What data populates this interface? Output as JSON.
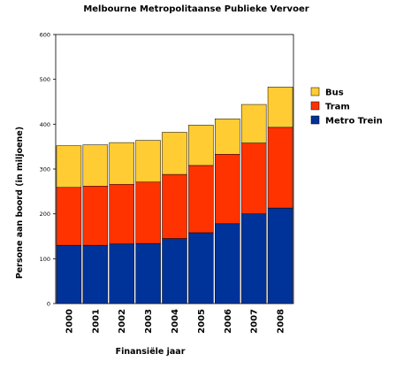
{
  "chart_data": {
    "type": "bar",
    "stacked": true,
    "title": "Melbourne Metropolitaanse Publieke Vervoer",
    "xlabel": "Finansiële jaar",
    "ylabel": "Persone aan boord (in miljoene)",
    "ylim": [
      0,
      600
    ],
    "yticks": [
      "0",
      "100",
      "200",
      "300",
      "400",
      "500",
      "600"
    ],
    "grid": false,
    "legend_position": "right",
    "categories": [
      "2000",
      "2001",
      "2002",
      "2003",
      "2004",
      "2005",
      "2006",
      "2007",
      "2008"
    ],
    "series": [
      {
        "name": "Metro Trein",
        "color": "#003399",
        "values": [
          130,
          130,
          133,
          134,
          145,
          158,
          178,
          200,
          213
        ]
      },
      {
        "name": "Tram",
        "color": "#ff3300",
        "values": [
          129,
          132,
          133,
          137,
          143,
          150,
          155,
          158,
          180
        ]
      },
      {
        "name": "Bus",
        "color": "#ffcc33",
        "values": [
          93,
          92,
          93,
          93,
          94,
          90,
          79,
          86,
          90
        ]
      }
    ],
    "legend_order": [
      "Bus",
      "Tram",
      "Metro Trein"
    ]
  }
}
